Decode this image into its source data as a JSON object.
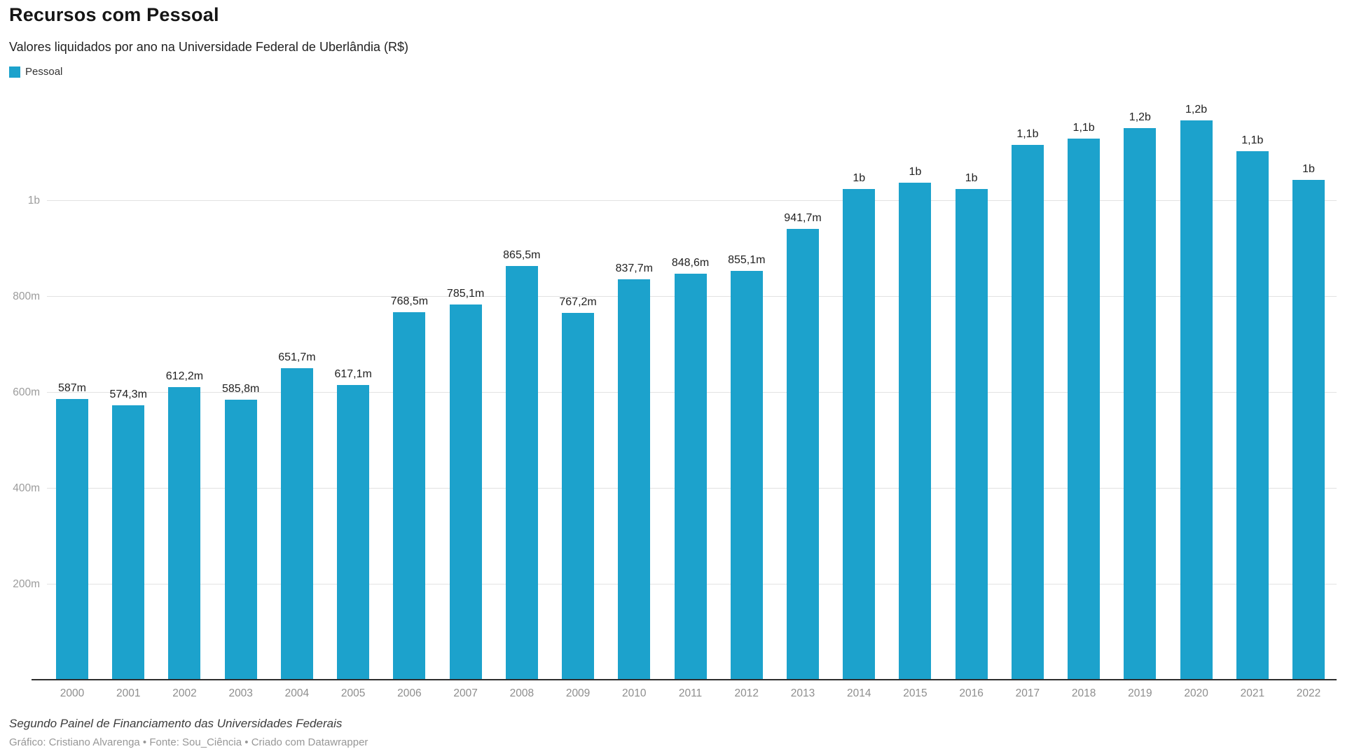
{
  "header": {
    "title": "Recursos com Pessoal",
    "subtitle": "Valores liquidados por ano na Universidade Federal de Uberlândia (R$)"
  },
  "legend": {
    "items": [
      {
        "label": "Pessoal",
        "color": "#1CA2CC"
      }
    ]
  },
  "footer": {
    "source_note": "Segundo Painel de Financiamento das Universidades Federais",
    "byline_prefix": "Gráfico: Cristiano Alvarenga • Fonte: Sou_Ciência • ",
    "datawrapper_credit": "Criado com Datawrapper"
  },
  "chart_data": {
    "type": "bar",
    "title": "Recursos com Pessoal",
    "subtitle": "Valores liquidados por ano na Universidade Federal de Uberlândia (R$)",
    "unit": "R$",
    "series_name": "Pessoal",
    "categories": [
      "2000",
      "2001",
      "2002",
      "2003",
      "2004",
      "2005",
      "2006",
      "2007",
      "2008",
      "2009",
      "2010",
      "2011",
      "2012",
      "2013",
      "2014",
      "2015",
      "2016",
      "2017",
      "2018",
      "2019",
      "2020",
      "2021",
      "2022"
    ],
    "values_millions": [
      587.0,
      574.3,
      612.2,
      585.8,
      651.7,
      617.1,
      768.5,
      785.1,
      865.5,
      767.2,
      837.7,
      848.6,
      855.1,
      941.7,
      1026,
      1038,
      1025,
      1117,
      1130,
      1152,
      1169,
      1105,
      1044
    ],
    "value_labels": [
      "587m",
      "574,3m",
      "612,2m",
      "585,8m",
      "651,7m",
      "617,1m",
      "768,5m",
      "785,1m",
      "865,5m",
      "767,2m",
      "837,7m",
      "848,6m",
      "855,1m",
      "941,7m",
      "1b",
      "1b",
      "1b",
      "1,1b",
      "1,1b",
      "1,2b",
      "1,2b",
      "1,1b",
      "1b"
    ],
    "yticks": [
      {
        "value": 200,
        "label": "200m"
      },
      {
        "value": 400,
        "label": "400m"
      },
      {
        "value": 600,
        "label": "600m"
      },
      {
        "value": 800,
        "label": "800m"
      },
      {
        "value": 1000,
        "label": "1b"
      }
    ],
    "ylim": [
      0,
      1230
    ],
    "bar_color": "#1CA2CC",
    "grid": "horizontal",
    "legend_position": "top-left",
    "xlabel": "",
    "ylabel": ""
  }
}
